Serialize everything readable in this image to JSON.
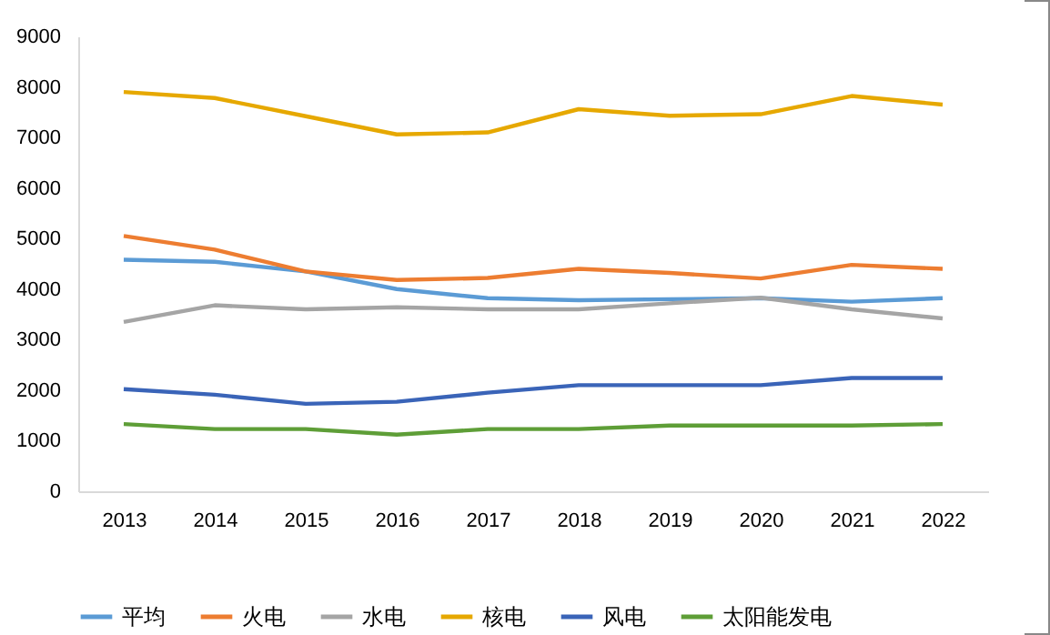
{
  "chart_data": {
    "type": "line",
    "categories": [
      "2013",
      "2014",
      "2015",
      "2016",
      "2017",
      "2018",
      "2019",
      "2020",
      "2021",
      "2022"
    ],
    "series": [
      {
        "name": "平均",
        "color": "#5b9bd5",
        "values": [
          4580,
          4540,
          4350,
          4000,
          3820,
          3780,
          3800,
          3820,
          3750,
          3820
        ]
      },
      {
        "name": "火电",
        "color": "#ed7d31",
        "values": [
          5050,
          4780,
          4350,
          4180,
          4220,
          4400,
          4320,
          4210,
          4480,
          4400
        ]
      },
      {
        "name": "水电",
        "color": "#a5a5a5",
        "values": [
          3350,
          3680,
          3600,
          3640,
          3600,
          3600,
          3720,
          3830,
          3600,
          3420
        ]
      },
      {
        "name": "核电",
        "color": "#e6a800",
        "values": [
          7900,
          7780,
          7420,
          7060,
          7100,
          7560,
          7430,
          7460,
          7820,
          7650
        ]
      },
      {
        "name": "风电",
        "color": "#3a64b8",
        "values": [
          2020,
          1910,
          1730,
          1770,
          1950,
          2100,
          2100,
          2100,
          2240,
          2240
        ]
      },
      {
        "name": "太阳能发电",
        "color": "#5e9e37",
        "values": [
          1330,
          1230,
          1230,
          1120,
          1230,
          1230,
          1300,
          1300,
          1300,
          1330
        ]
      }
    ],
    "ylim": [
      0,
      9000
    ],
    "yticks": [
      0,
      1000,
      2000,
      3000,
      4000,
      5000,
      6000,
      7000,
      8000,
      9000
    ],
    "grid": false,
    "legend": "bottom",
    "marker": "none",
    "line_style": "solid"
  }
}
